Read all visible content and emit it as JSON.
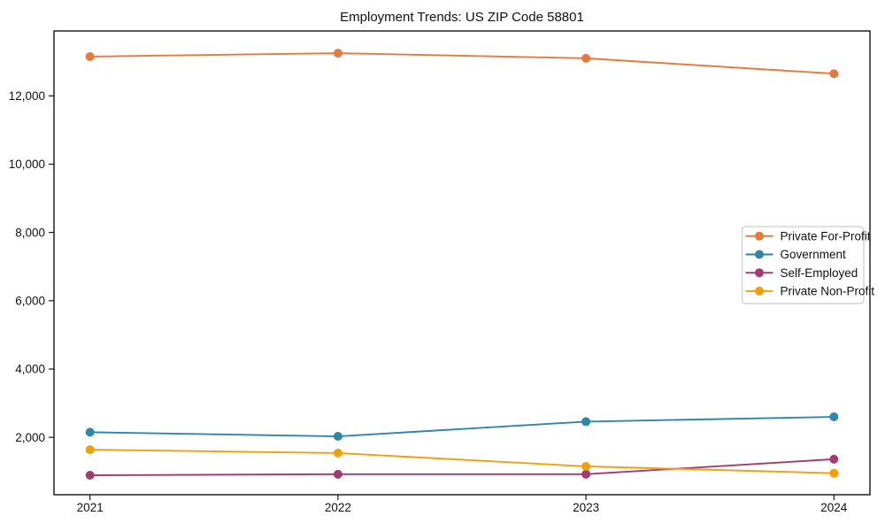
{
  "title": "Employment Trends: US ZIP Code 58801",
  "chart_data": {
    "type": "line",
    "title": "Employment Trends: US ZIP Code 58801",
    "x": [
      "2021",
      "2022",
      "2023",
      "2024"
    ],
    "series": [
      {
        "name": "Private For-Profit",
        "color": "#E8783C",
        "values": [
          13150,
          13250,
          13100,
          12650
        ]
      },
      {
        "name": "Government",
        "color": "#2E86AB",
        "values": [
          2150,
          2030,
          2460,
          2600
        ]
      },
      {
        "name": "Self-Employed",
        "color": "#A23B72",
        "values": [
          890,
          920,
          920,
          1360
        ]
      },
      {
        "name": "Private Non-Profit",
        "color": "#F2A00A",
        "values": [
          1640,
          1540,
          1150,
          950
        ]
      }
    ],
    "xlabel": "",
    "ylabel": "",
    "ylim": [
      320,
      13900
    ],
    "yticks": [
      2000,
      4000,
      6000,
      8000,
      10000,
      12000
    ],
    "grid": false,
    "legend_position": "center right",
    "marker": "circle",
    "axis_color": "#000000",
    "legend_border_color": "#cccccc",
    "background_color": "#ffffff"
  }
}
